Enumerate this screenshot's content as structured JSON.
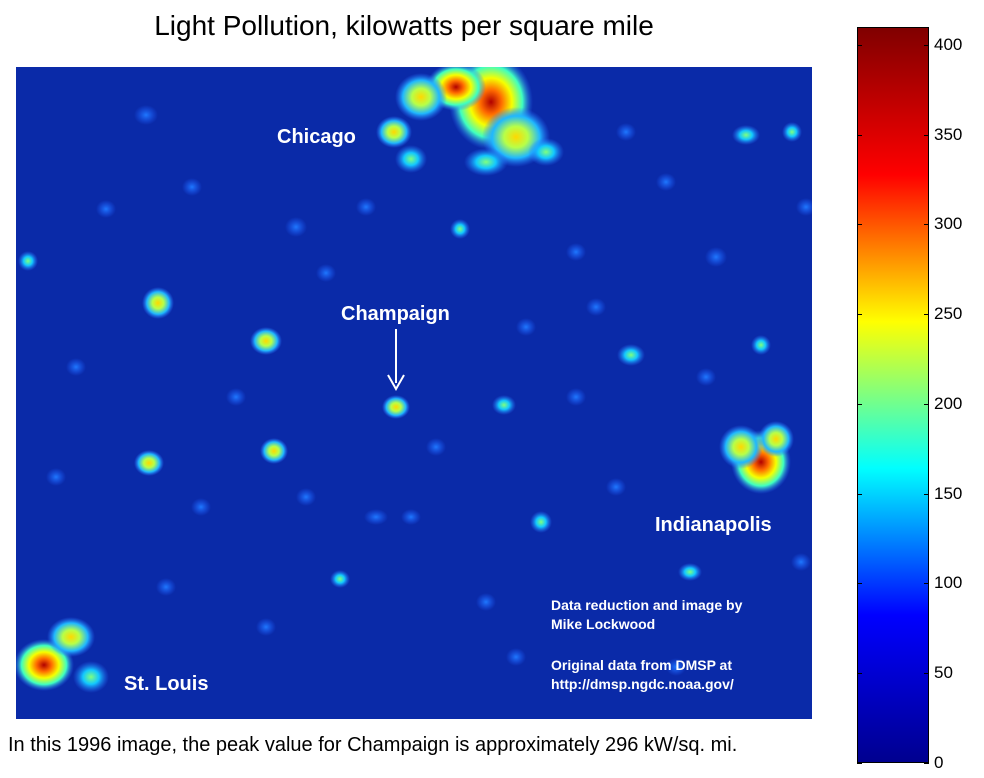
{
  "chart_data": {
    "type": "heatmap",
    "title": "Light Pollution, kilowatts per square mile",
    "colorbar": {
      "min": 0,
      "max": 410,
      "ticks": [
        0,
        50,
        100,
        150,
        200,
        250,
        300,
        350,
        400
      ],
      "colormap": "jet"
    },
    "cities": [
      {
        "name": "Chicago"
      },
      {
        "name": "Champaign"
      },
      {
        "name": "Indianapolis"
      },
      {
        "name": "St. Louis"
      }
    ],
    "annotation_arrow": "Champaign",
    "credits": [
      "Data reduction and image by",
      "Mike Lockwood",
      "",
      "Original data from DMSP at",
      "http://dmsp.ngdc.noaa.gov/"
    ],
    "caption": "In this 1996 image, the peak value for Champaign is approximately 296 kW/sq. mi."
  },
  "colors": {
    "background": "#0a2aa8",
    "jet_stops": [
      "#00008f",
      "#0000ff",
      "#00ffff",
      "#ffff00",
      "#ff0000",
      "#800000"
    ]
  }
}
